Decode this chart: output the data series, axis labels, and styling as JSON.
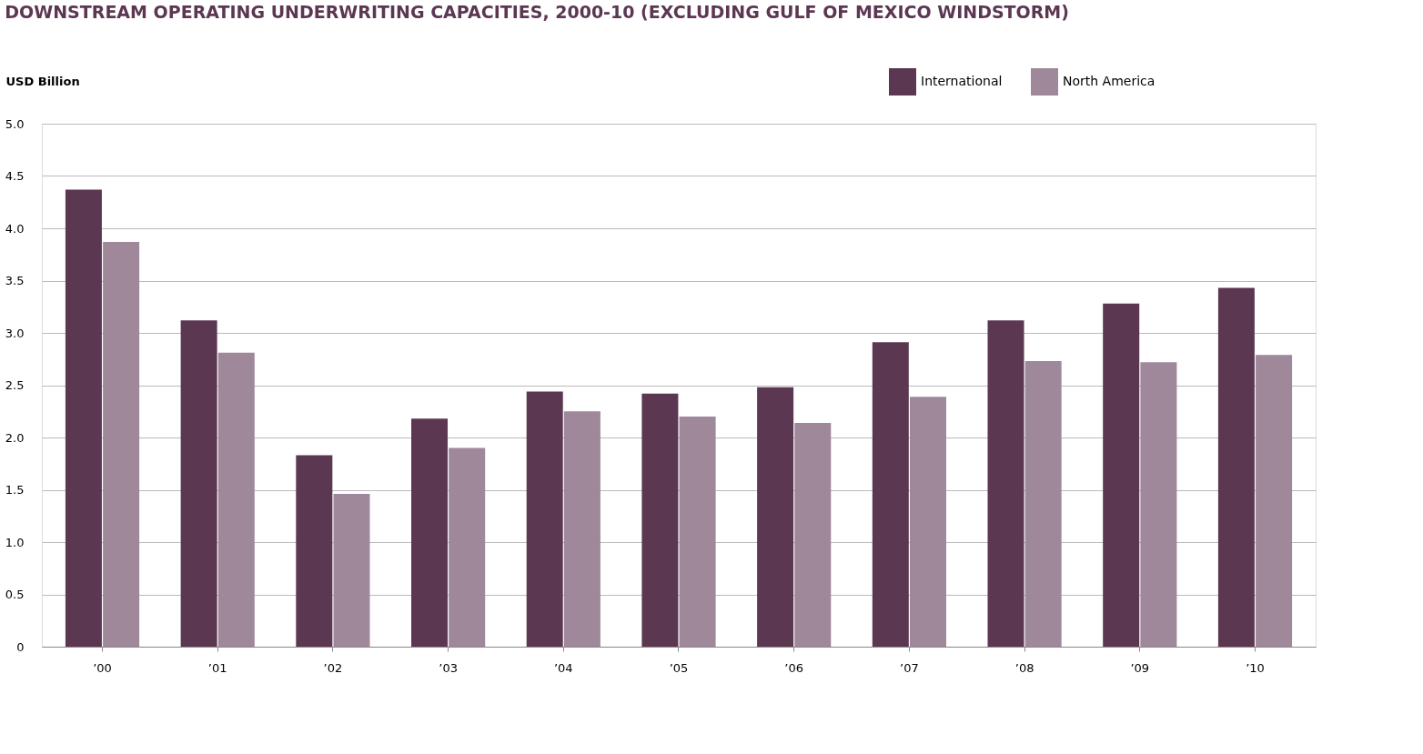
{
  "chart_data": {
    "type": "bar",
    "title": "DOWNSTREAM OPERATING UNDERWRITING CAPACITIES, 2000-10 (EXCLUDING GULF OF MEXICO WINDSTORM)",
    "ylabel": "USD Billion",
    "categories": [
      "’00",
      "’01",
      "’02",
      "’03",
      "’04",
      "’05",
      "’06",
      "’07",
      "’08",
      "’09",
      "’10"
    ],
    "series": [
      {
        "name": "International",
        "color": "#5c3752",
        "values": [
          4.37,
          3.12,
          1.83,
          2.18,
          2.44,
          2.42,
          2.48,
          2.91,
          3.12,
          3.28,
          3.43
        ]
      },
      {
        "name": "North America",
        "color": "#9e8899",
        "values": [
          3.87,
          2.81,
          1.46,
          1.9,
          2.25,
          2.2,
          2.14,
          2.39,
          2.73,
          2.72,
          2.79
        ]
      }
    ],
    "ylim": [
      0,
      5
    ],
    "yticks": [
      0,
      {
        "value": 0.5,
        "label": "0.5"
      },
      {
        "value": 1,
        "label": "1.0"
      },
      {
        "value": 1.5,
        "label": "1.5"
      },
      {
        "value": 2,
        "label": "2.0"
      },
      {
        "value": 2.5,
        "label": "2.5"
      },
      {
        "value": 3,
        "label": "3.0"
      },
      {
        "value": 3.5,
        "label": "3.5"
      },
      {
        "value": 4,
        "label": "4.0"
      },
      {
        "value": 4.5,
        "label": "4.5"
      },
      {
        "value": 5,
        "label": "5.0"
      }
    ],
    "grid": "y",
    "legend": "top right"
  }
}
